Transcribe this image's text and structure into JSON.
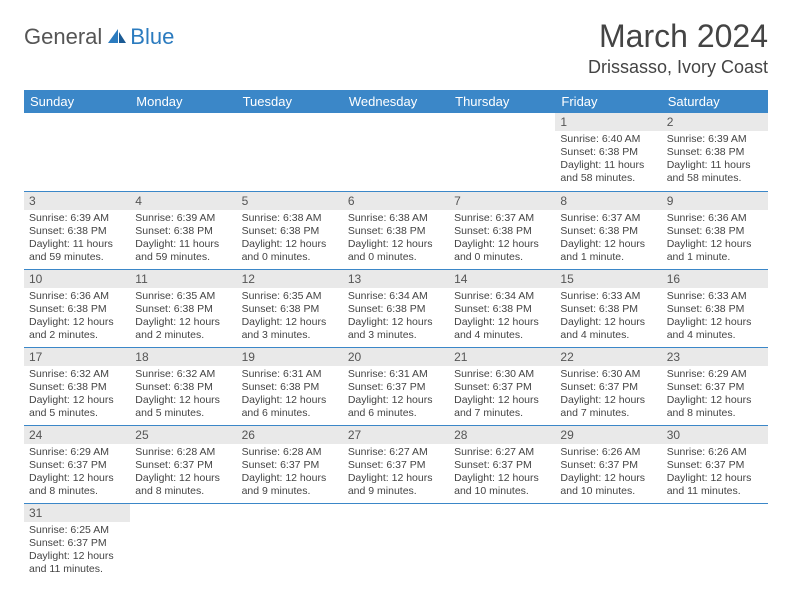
{
  "logo": {
    "gray": "General",
    "blue": "Blue"
  },
  "title": "March 2024",
  "location": "Drissasso, Ivory Coast",
  "colors": {
    "headerBlue": "#3b87c8",
    "dayNumBg": "#e9e9e9",
    "rowBorder": "#3b87c8",
    "logoBlue": "#2b7bbf"
  },
  "weekdays": [
    "Sunday",
    "Monday",
    "Tuesday",
    "Wednesday",
    "Thursday",
    "Friday",
    "Saturday"
  ],
  "weeks": [
    [
      null,
      null,
      null,
      null,
      null,
      {
        "n": "1",
        "sr": "6:40 AM",
        "ss": "6:38 PM",
        "dl": "11 hours and 58 minutes."
      },
      {
        "n": "2",
        "sr": "6:39 AM",
        "ss": "6:38 PM",
        "dl": "11 hours and 58 minutes."
      }
    ],
    [
      {
        "n": "3",
        "sr": "6:39 AM",
        "ss": "6:38 PM",
        "dl": "11 hours and 59 minutes."
      },
      {
        "n": "4",
        "sr": "6:39 AM",
        "ss": "6:38 PM",
        "dl": "11 hours and 59 minutes."
      },
      {
        "n": "5",
        "sr": "6:38 AM",
        "ss": "6:38 PM",
        "dl": "12 hours and 0 minutes."
      },
      {
        "n": "6",
        "sr": "6:38 AM",
        "ss": "6:38 PM",
        "dl": "12 hours and 0 minutes."
      },
      {
        "n": "7",
        "sr": "6:37 AM",
        "ss": "6:38 PM",
        "dl": "12 hours and 0 minutes."
      },
      {
        "n": "8",
        "sr": "6:37 AM",
        "ss": "6:38 PM",
        "dl": "12 hours and 1 minute."
      },
      {
        "n": "9",
        "sr": "6:36 AM",
        "ss": "6:38 PM",
        "dl": "12 hours and 1 minute."
      }
    ],
    [
      {
        "n": "10",
        "sr": "6:36 AM",
        "ss": "6:38 PM",
        "dl": "12 hours and 2 minutes."
      },
      {
        "n": "11",
        "sr": "6:35 AM",
        "ss": "6:38 PM",
        "dl": "12 hours and 2 minutes."
      },
      {
        "n": "12",
        "sr": "6:35 AM",
        "ss": "6:38 PM",
        "dl": "12 hours and 3 minutes."
      },
      {
        "n": "13",
        "sr": "6:34 AM",
        "ss": "6:38 PM",
        "dl": "12 hours and 3 minutes."
      },
      {
        "n": "14",
        "sr": "6:34 AM",
        "ss": "6:38 PM",
        "dl": "12 hours and 4 minutes."
      },
      {
        "n": "15",
        "sr": "6:33 AM",
        "ss": "6:38 PM",
        "dl": "12 hours and 4 minutes."
      },
      {
        "n": "16",
        "sr": "6:33 AM",
        "ss": "6:38 PM",
        "dl": "12 hours and 4 minutes."
      }
    ],
    [
      {
        "n": "17",
        "sr": "6:32 AM",
        "ss": "6:38 PM",
        "dl": "12 hours and 5 minutes."
      },
      {
        "n": "18",
        "sr": "6:32 AM",
        "ss": "6:38 PM",
        "dl": "12 hours and 5 minutes."
      },
      {
        "n": "19",
        "sr": "6:31 AM",
        "ss": "6:38 PM",
        "dl": "12 hours and 6 minutes."
      },
      {
        "n": "20",
        "sr": "6:31 AM",
        "ss": "6:37 PM",
        "dl": "12 hours and 6 minutes."
      },
      {
        "n": "21",
        "sr": "6:30 AM",
        "ss": "6:37 PM",
        "dl": "12 hours and 7 minutes."
      },
      {
        "n": "22",
        "sr": "6:30 AM",
        "ss": "6:37 PM",
        "dl": "12 hours and 7 minutes."
      },
      {
        "n": "23",
        "sr": "6:29 AM",
        "ss": "6:37 PM",
        "dl": "12 hours and 8 minutes."
      }
    ],
    [
      {
        "n": "24",
        "sr": "6:29 AM",
        "ss": "6:37 PM",
        "dl": "12 hours and 8 minutes."
      },
      {
        "n": "25",
        "sr": "6:28 AM",
        "ss": "6:37 PM",
        "dl": "12 hours and 8 minutes."
      },
      {
        "n": "26",
        "sr": "6:28 AM",
        "ss": "6:37 PM",
        "dl": "12 hours and 9 minutes."
      },
      {
        "n": "27",
        "sr": "6:27 AM",
        "ss": "6:37 PM",
        "dl": "12 hours and 9 minutes."
      },
      {
        "n": "28",
        "sr": "6:27 AM",
        "ss": "6:37 PM",
        "dl": "12 hours and 10 minutes."
      },
      {
        "n": "29",
        "sr": "6:26 AM",
        "ss": "6:37 PM",
        "dl": "12 hours and 10 minutes."
      },
      {
        "n": "30",
        "sr": "6:26 AM",
        "ss": "6:37 PM",
        "dl": "12 hours and 11 minutes."
      }
    ],
    [
      {
        "n": "31",
        "sr": "6:25 AM",
        "ss": "6:37 PM",
        "dl": "12 hours and 11 minutes."
      },
      null,
      null,
      null,
      null,
      null,
      null
    ]
  ],
  "labels": {
    "sunrise": "Sunrise:",
    "sunset": "Sunset:",
    "daylight": "Daylight:"
  }
}
